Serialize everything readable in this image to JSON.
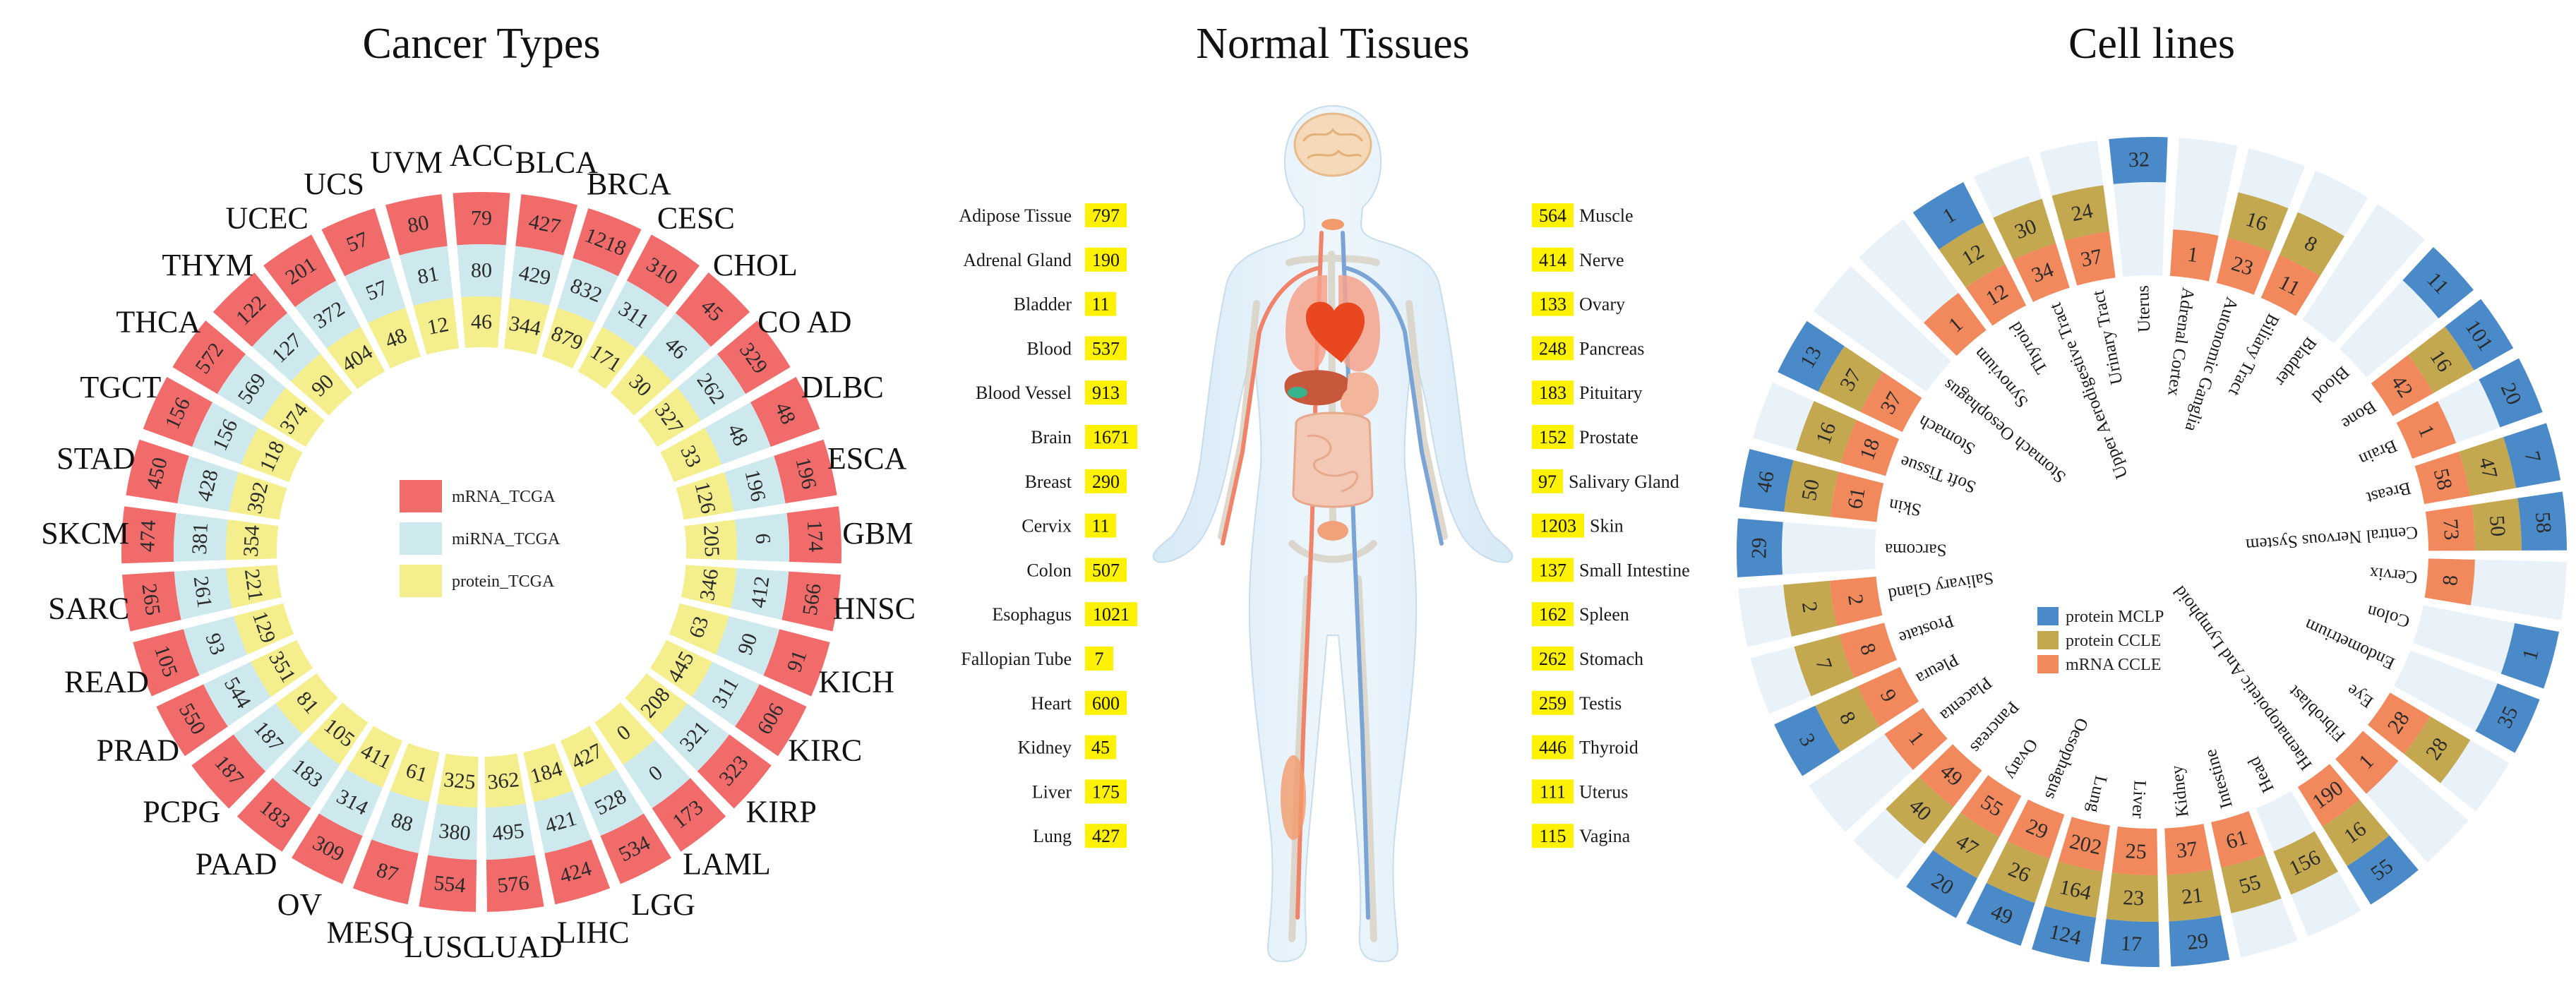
{
  "panels": {
    "cancer": {
      "title": "Cancer Types"
    },
    "tissues": {
      "title": "Normal Tissues"
    },
    "cells": {
      "title": "Cell lines"
    }
  },
  "colors": {
    "mrna_tcga": "#f26b6b",
    "mirna_tcga": "#cde9ee",
    "protein_tcga": "#f4ee8c",
    "tissue_badge": "#fff200",
    "protein_mclp": "#4a8ac9",
    "protein_ccle": "#c4a84f",
    "mrna_ccle": "#f2895c",
    "cell_bg": "#e9f1f9"
  },
  "chart_data": [
    {
      "type": "radial-bar",
      "title": "Cancer Types",
      "legend_position": "center",
      "categories": [
        "ACC",
        "BLCA",
        "BRCA",
        "CESC",
        "CHOL",
        "COAD",
        "DLBC",
        "ESCA",
        "GBM",
        "HNSC",
        "KICH",
        "KIRC",
        "KIRP",
        "LAML",
        "LGG",
        "LIHC",
        "LUAD",
        "LUSC",
        "MESO",
        "OV",
        "PAAD",
        "PCPG",
        "PRAD",
        "READ",
        "SARC",
        "SKCM",
        "STAD",
        "TGCT",
        "THCA",
        "THYM",
        "UCEC",
        "UCS",
        "UVM"
      ],
      "category_labels": [
        "ACC",
        "BLCA",
        "BRCA",
        "CESC",
        "CHOL",
        "CO AD",
        "DLBC",
        "ESCA",
        "GBM",
        "HNSC",
        "KICH",
        "KIRC",
        "KIRP",
        "LAML",
        "LGG",
        "LIHC",
        "LUAD",
        "LUSC",
        "MESO",
        "OV",
        "PAAD",
        "PCPG",
        "PRAD",
        "READ",
        "SARC",
        "SKCM",
        "STAD",
        "TGCT",
        "THCA",
        "THYM",
        "UCEC",
        "UCS",
        "UVM"
      ],
      "series": [
        {
          "name": "mRNA_TCGA",
          "values": [
            79,
            427,
            1218,
            310,
            45,
            329,
            48,
            196,
            174,
            566,
            91,
            606,
            323,
            173,
            534,
            424,
            576,
            554,
            87,
            309,
            183,
            187,
            550,
            105,
            265,
            474,
            450,
            156,
            572,
            122,
            201,
            57,
            80
          ]
        },
        {
          "name": "miRNA_TCGA",
          "values": [
            80,
            429,
            832,
            311,
            46,
            262,
            48,
            196,
            6,
            412,
            90,
            311,
            321,
            0,
            528,
            421,
            495,
            380,
            88,
            314,
            183,
            187,
            544,
            93,
            261,
            381,
            428,
            156,
            569,
            127,
            372,
            57,
            81
          ]
        },
        {
          "name": "protein_TCGA",
          "values": [
            46,
            344,
            879,
            171,
            30,
            327,
            33,
            126,
            205,
            346,
            63,
            445,
            208,
            0,
            427,
            184,
            362,
            325,
            61,
            411,
            105,
            81,
            351,
            129,
            221,
            354,
            392,
            118,
            374,
            90,
            404,
            48,
            12
          ]
        }
      ]
    },
    {
      "type": "table",
      "title": "Normal Tissues",
      "left": [
        {
          "tissue": "Adipose Tissue",
          "count": "797"
        },
        {
          "tissue": "Adrenal Gland",
          "count": "190"
        },
        {
          "tissue": "Bladder",
          "count": "11"
        },
        {
          "tissue": "Blood",
          "count": "537"
        },
        {
          "tissue": "Blood Vessel",
          "count": "913"
        },
        {
          "tissue": "Brain",
          "count": "1671"
        },
        {
          "tissue": "Breast",
          "count": "290"
        },
        {
          "tissue": "Cervix",
          "count": "11"
        },
        {
          "tissue": "Colon",
          "count": "507"
        },
        {
          "tissue": "Esophagus",
          "count": "1021"
        },
        {
          "tissue": "Fallopian Tube",
          "count": "7"
        },
        {
          "tissue": "Heart",
          "count": "600"
        },
        {
          "tissue": "Kidney",
          "count": "45"
        },
        {
          "tissue": "Liver",
          "count": "175"
        },
        {
          "tissue": "Lung",
          "count": "427"
        }
      ],
      "right": [
        {
          "tissue": "Muscle",
          "count": "564"
        },
        {
          "tissue": "Nerve",
          "count": "414"
        },
        {
          "tissue": "Ovary",
          "count": "133"
        },
        {
          "tissue": "Pancreas",
          "count": "248"
        },
        {
          "tissue": "Pituitary",
          "count": "183"
        },
        {
          "tissue": "Prostate",
          "count": "152"
        },
        {
          "tissue": "Salivary Gland",
          "count": "97"
        },
        {
          "tissue": "Skin",
          "count": "1203"
        },
        {
          "tissue": "Small Intestine",
          "count": "137"
        },
        {
          "tissue": "Spleen",
          "count": "162"
        },
        {
          "tissue": "Stomach",
          "count": "262"
        },
        {
          "tissue": "Testis",
          "count": "259"
        },
        {
          "tissue": "Thyroid",
          "count": "446"
        },
        {
          "tissue": "Uterus",
          "count": "111"
        },
        {
          "tissue": "Vagina",
          "count": "115"
        }
      ]
    },
    {
      "type": "radial-bar",
      "title": "Cell lines",
      "legend_position": "center",
      "categories": [
        "Adrenal Cortex",
        "Autonomic Ganglia",
        "Biliary Tract",
        "Bladder",
        "Blood",
        "Bone",
        "Brain",
        "Breast",
        "Central Nervous System",
        "Cervix",
        "Colon",
        "Endometrium",
        "Eye",
        "Fibroblast",
        "Haematopoietic And Lymphoid",
        "Head",
        "Intestine",
        "Kidney",
        "Liver",
        "Lung",
        "Oesophagus",
        "Ovary",
        "Pancreas",
        "Placenta",
        "Pleura",
        "Prostate",
        "Salivary Gland",
        "Sarcoma",
        "Skin",
        "Soft Tissue",
        "Stomach",
        "Stomach Oesophagus",
        "Synovium",
        "Thyroid",
        "Upper Aerodigestive Tract",
        "Urinary Tract",
        "Uterus"
      ],
      "series": [
        {
          "name": "mRNA CCLE",
          "values": [
            "1",
            "23",
            "11",
            "",
            "",
            "42",
            "1",
            "58",
            "73",
            "8",
            "",
            "",
            "28",
            "1",
            "190",
            "",
            "61",
            "37",
            "25",
            "202",
            "29",
            "55",
            "49",
            "1",
            "9",
            "8",
            "2",
            "",
            "61",
            "18",
            "37",
            "",
            "1",
            "12",
            "34",
            "37",
            ""
          ]
        },
        {
          "name": "protein CCLE",
          "values": [
            "",
            "16",
            "8",
            "",
            "",
            "16",
            "",
            "47",
            "50",
            "",
            "",
            "",
            "28",
            "",
            "16",
            "156",
            "55",
            "21",
            "23",
            "164",
            "26",
            "47",
            "40",
            "",
            "8",
            "7",
            "2",
            "",
            "50",
            "16",
            "37",
            "",
            "",
            "12",
            "30",
            "24",
            ""
          ]
        },
        {
          "name": "protein MCLP",
          "values": [
            "",
            "",
            "",
            "",
            "11",
            "101",
            "20",
            "7",
            "58",
            "",
            "1",
            "35",
            "",
            "",
            "55",
            "",
            "",
            "29",
            "17",
            "124",
            "49",
            "20",
            "",
            "",
            "3",
            "",
            "",
            "29",
            "46",
            "",
            "13",
            "",
            "",
            "1",
            "",
            "",
            "32"
          ]
        }
      ]
    }
  ]
}
